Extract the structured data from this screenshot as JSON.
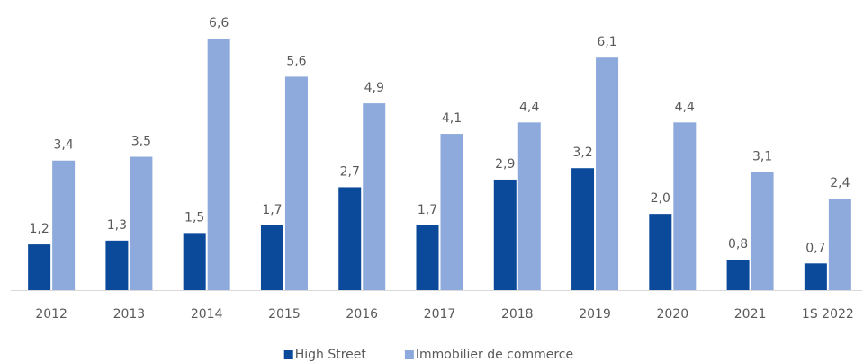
{
  "chart_data": {
    "type": "bar",
    "categories": [
      "2012",
      "2013",
      "2014",
      "2015",
      "2016",
      "2017",
      "2018",
      "2019",
      "2020",
      "2021",
      "1S 2022"
    ],
    "series": [
      {
        "name": "High Street",
        "color": "#0b4a9a",
        "values": [
          1.2,
          1.3,
          1.5,
          1.7,
          2.7,
          1.7,
          2.9,
          3.2,
          2.0,
          0.8,
          0.7
        ],
        "value_labels": [
          "1,2",
          "1,3",
          "1,5",
          "1,7",
          "2,7",
          "1,7",
          "2,9",
          "3,2",
          "2,0",
          "0,8",
          "0,7"
        ]
      },
      {
        "name": "Immobilier de commerce",
        "color": "#8eaadc",
        "values": [
          3.4,
          3.5,
          6.6,
          5.6,
          4.9,
          4.1,
          4.4,
          6.1,
          4.4,
          3.1,
          2.4
        ],
        "value_labels": [
          "3,4",
          "3,5",
          "6,6",
          "5,6",
          "4,9",
          "4,1",
          "4,4",
          "6,1",
          "4,4",
          "3,1",
          "2,4"
        ]
      }
    ],
    "ylim": [
      0,
      7
    ],
    "legend": "bottom"
  }
}
